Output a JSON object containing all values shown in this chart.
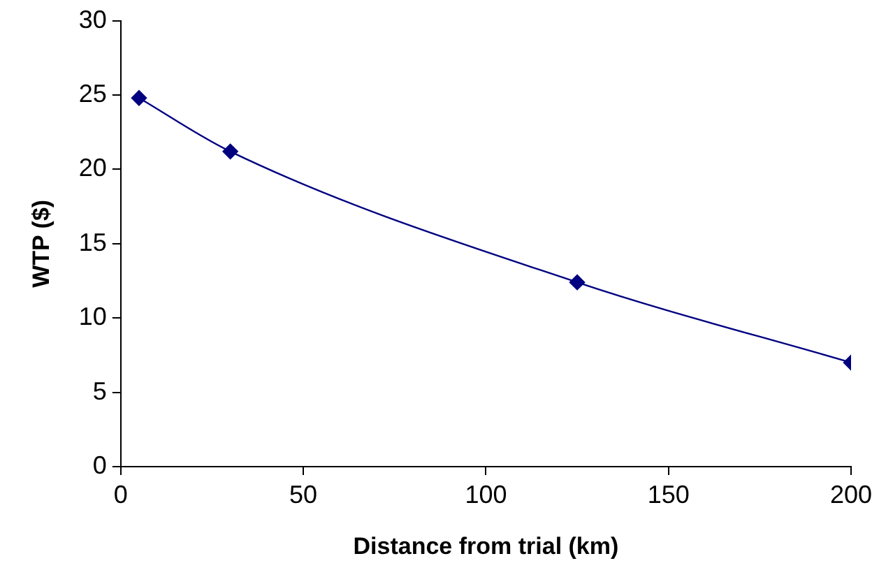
{
  "chart_data": {
    "type": "line",
    "xlabel": "Distance from trial (km)",
    "ylabel": "WTP ($)",
    "x": [
      5,
      30,
      125,
      200
    ],
    "series": [
      {
        "color": "#000080",
        "values": [
          24.8,
          21.2,
          12.4,
          7.0
        ]
      }
    ],
    "xlim": [
      0,
      200
    ],
    "xticks": [
      0,
      50,
      100,
      150,
      200
    ],
    "ylim": [
      0,
      30
    ],
    "yticks": [
      0,
      5,
      10,
      15,
      20,
      25,
      30
    ],
    "marker": "diamond",
    "line_style": "solid",
    "grid": false,
    "legend": false
  }
}
